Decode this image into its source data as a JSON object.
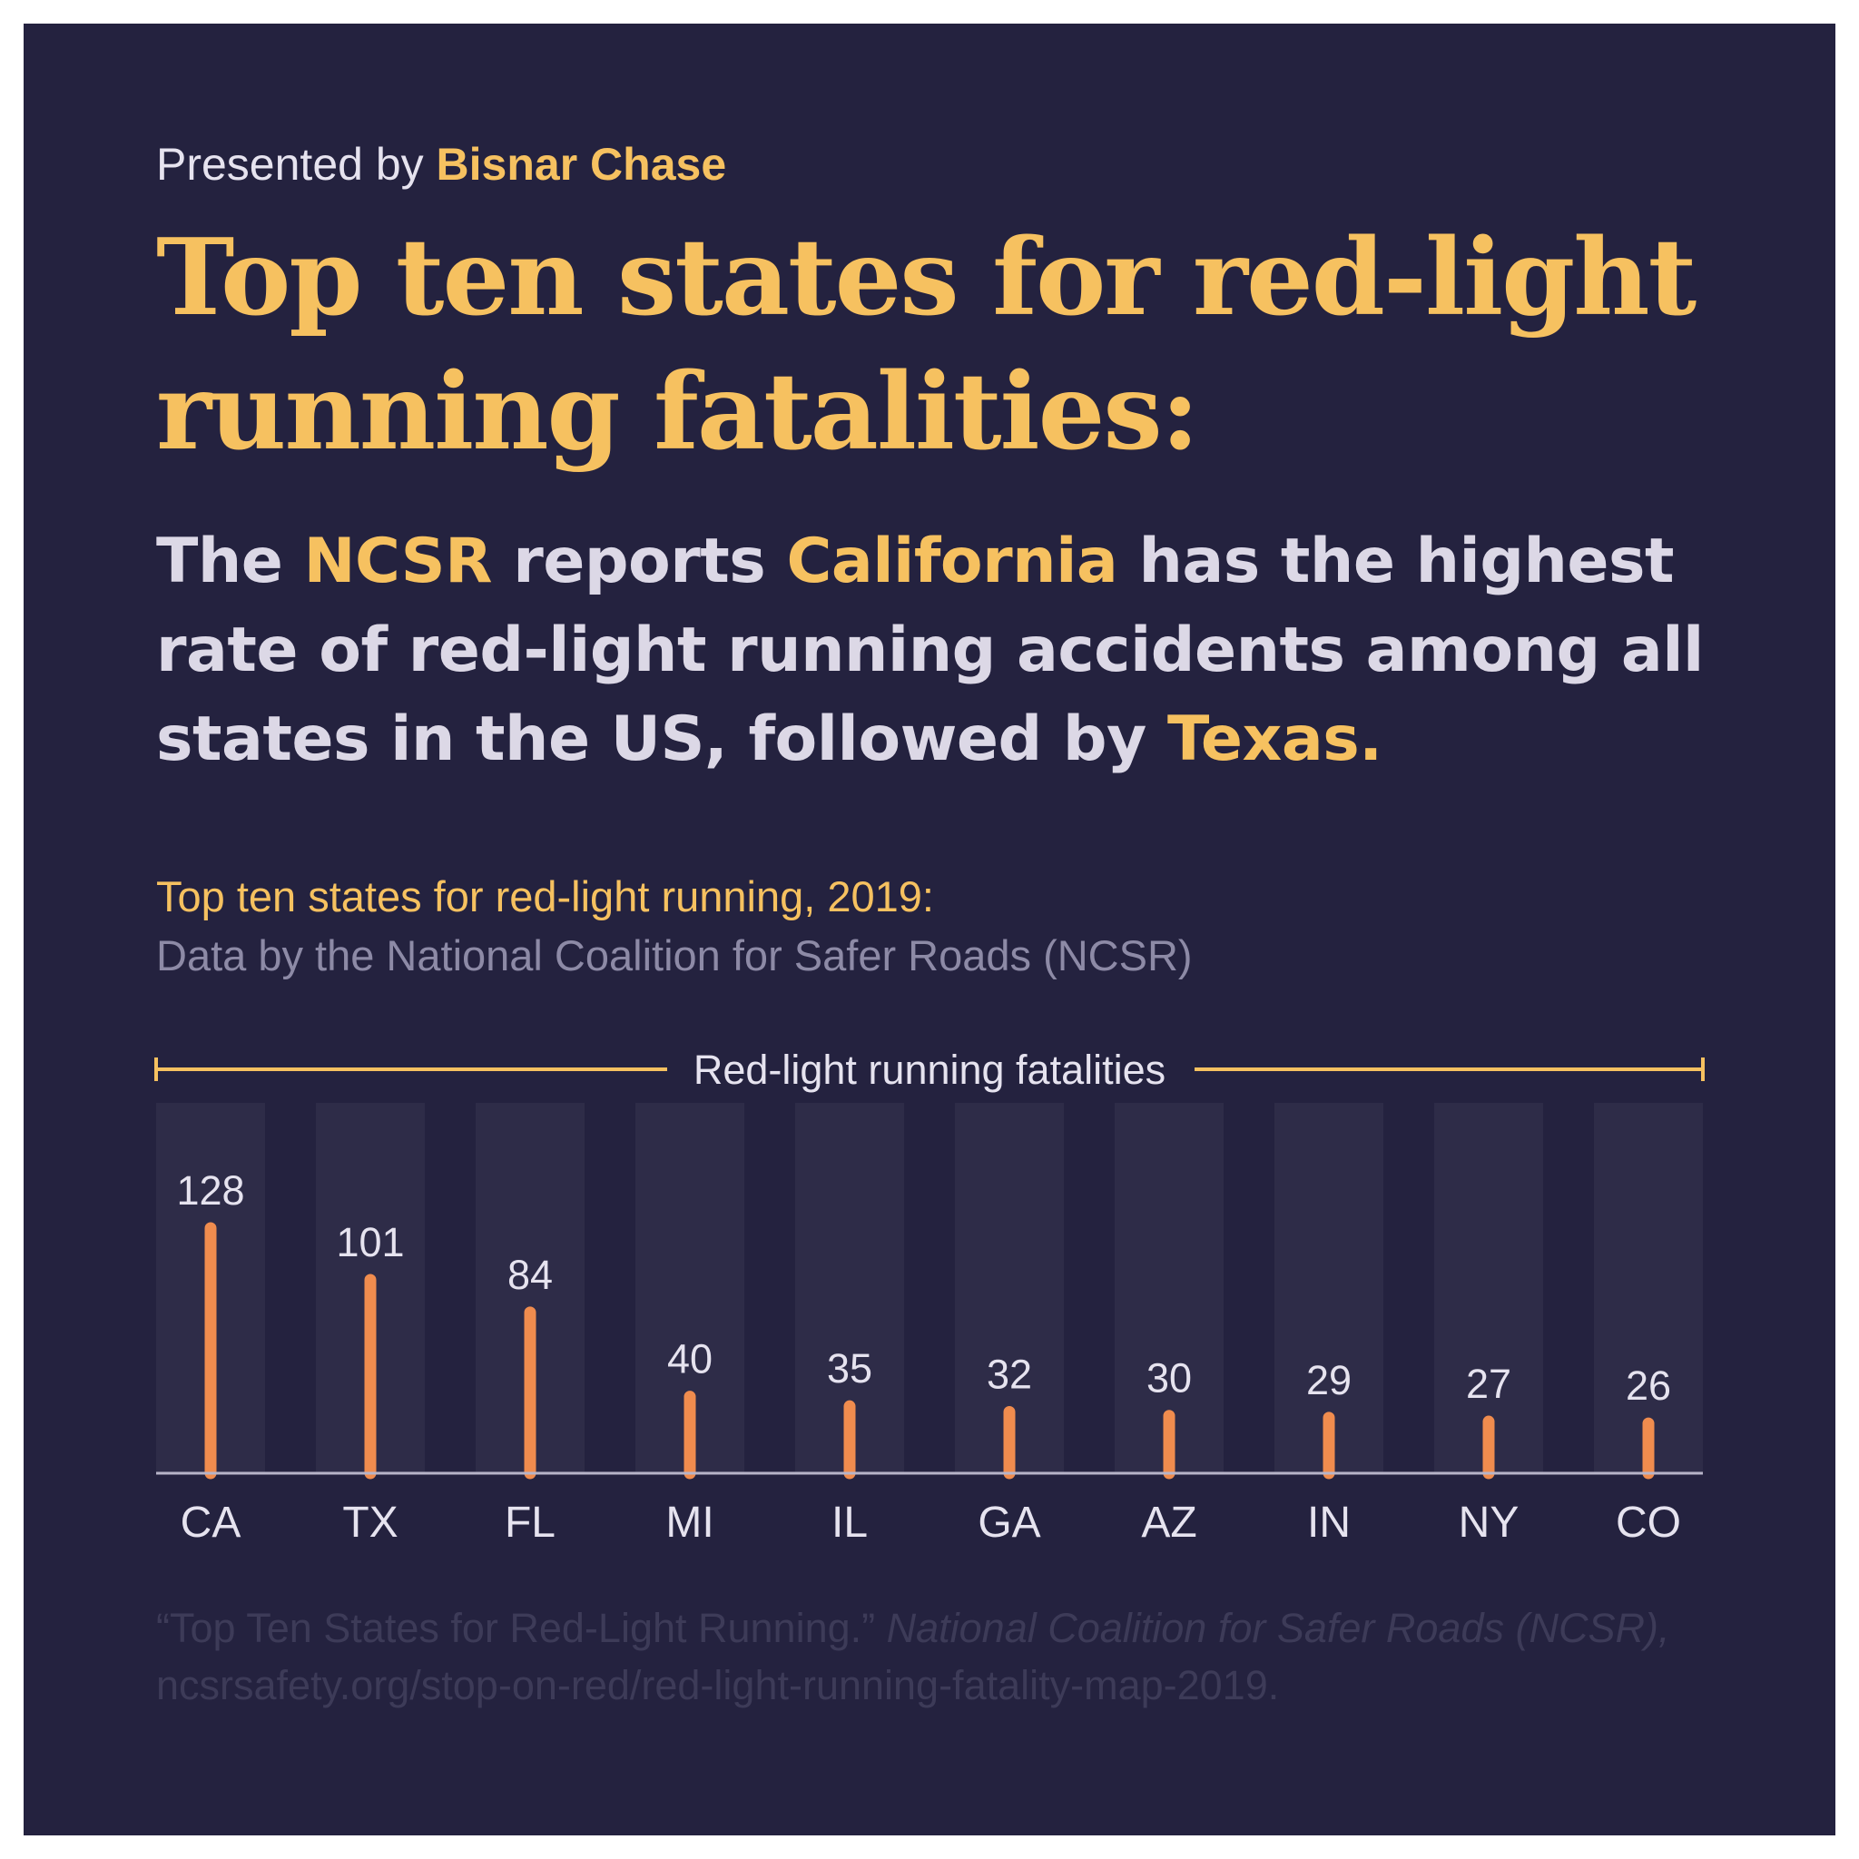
{
  "presented": {
    "prefix": "Presented by",
    "brand": "Bisnar Chase"
  },
  "headline": "Top ten states for red-light running fatalities:",
  "lead": {
    "p1": "The ",
    "h1": "NCSR",
    "p2": " reports ",
    "h2": "California",
    "p3": " has the highest rate of red-light running accidents among all states in the US, followed by ",
    "h3": "Texas."
  },
  "footnote": {
    "part1": "“Top Ten States for Red-Light Running.” ",
    "part2": "National Coalition for Safer Roads (NCSR),",
    "part3": " ncsrsafety.org/stop-on-red/red-light-running-fatality-map-2019."
  },
  "colors": {
    "background": "#24223f",
    "accent": "#f6c160",
    "bar": "#f08c4e",
    "column": "#2e2c48",
    "baseline": "#b7b4c8",
    "text": "#e6e3ef"
  },
  "chart_data": {
    "type": "bar",
    "title": "Top ten states for red-light running, 2019:",
    "subtitle": "Data by the National Coalition for Safer Roads (NCSR)",
    "header_label": "Red-light running fatalities",
    "categories": [
      "CA",
      "TX",
      "FL",
      "MI",
      "IL",
      "GA",
      "AZ",
      "IN",
      "NY",
      "CO"
    ],
    "values": [
      128,
      101,
      84,
      40,
      35,
      32,
      30,
      29,
      27,
      26
    ],
    "ylim": [
      0,
      128
    ],
    "grid": false,
    "legend": "none"
  }
}
